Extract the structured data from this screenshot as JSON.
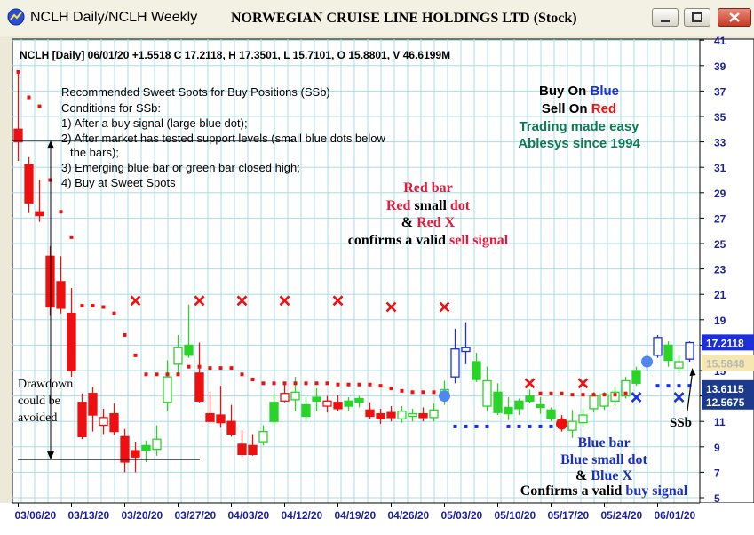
{
  "window": {
    "tab_label": "NCLH Daily/NCLH Weekly",
    "title": "NORWEGIAN CRUISE LINE HOLDINGS LTD (Stock)"
  },
  "info_line": "NCLH [Daily] 06/01/20 +1.5518 C 17.2118, H 17.3501, L 15.7101, O 15.8801, V 46.6199M",
  "notes": {
    "heading": "Recommended Sweet Spots for Buy Positions (SSb)",
    "lines": [
      "Conditions for SSb:",
      "1) After a buy signal (large blue dot);",
      "2) After market has tested support levels (small blue dots below",
      "the bars);",
      "3) Emerging blue bar or green bar closed high;",
      "4) Buy at Sweet Spots"
    ]
  },
  "brand": {
    "buy_prefix": "Buy On ",
    "buy_word": "Blue",
    "sell_prefix": "Sell On ",
    "sell_word": "Red",
    "line3": "Trading made easy",
    "line4": "Ablesys since 1994"
  },
  "sell_note": {
    "line1": "Red bar",
    "line2_a": "Red",
    "line2_b": " small ",
    "line2_c": "dot",
    "line3_a": "& ",
    "line3_b": "Red X",
    "line4_a": "confirms a valid ",
    "line4_b": "sell signal"
  },
  "buy_note": {
    "line1": "Blue bar",
    "line2": "Blue small dot",
    "line3_a": "& ",
    "line3_b": "Blue X",
    "line4_a": "Confirms a valid ",
    "line4_b": "buy signal"
  },
  "drawdown_text": [
    "Drawdown",
    "could be",
    "avoided"
  ],
  "ssb_label": "SSb",
  "price_tags": [
    {
      "value": "17.2118",
      "y": 17.2118,
      "bg": "#1d2fd8",
      "fg": "#ffffff"
    },
    {
      "value": "15.5848",
      "y": 15.5848,
      "bg": "#f4e7b0",
      "fg": "#b8b8b8"
    },
    {
      "value": "13.6115",
      "y": 13.6115,
      "bg": "#1b3a8c",
      "fg": "#ffffff"
    },
    {
      "value": "12.5675",
      "y": 12.5675,
      "bg": "#1b3a8c",
      "fg": "#ffffff"
    }
  ],
  "colors": {
    "chart_bg": "#ffffff",
    "grid": "#a8dde6",
    "red": "#ee1010",
    "green": "#28d428",
    "blue": "#1a2fe0",
    "brand_green": "#0c7a52",
    "label_blue": "#1a2fc0"
  },
  "chart_data": {
    "type": "candlestick",
    "ylim": [
      5,
      41
    ],
    "y_ticks": [
      5,
      7,
      9,
      11,
      13,
      15,
      17,
      19,
      21,
      23,
      25,
      27,
      29,
      31,
      33,
      35,
      37,
      39,
      41
    ],
    "x_tick_labels": [
      "03/06/20",
      "03/13/20",
      "03/20/20",
      "03/27/20",
      "04/03/20",
      "04/12/20",
      "04/19/20",
      "04/26/20",
      "05/03/20",
      "05/10/20",
      "05/17/20",
      "05/24/20",
      "06/01/20"
    ],
    "grid": true,
    "bars": [
      {
        "x": 0,
        "o": 34.0,
        "h": 38.5,
        "l": 31.5,
        "c": 33.0,
        "color": "red",
        "style": "filled"
      },
      {
        "x": 1,
        "o": 31.2,
        "h": 31.8,
        "l": 27.4,
        "c": 28.2,
        "color": "red",
        "style": "filled"
      },
      {
        "x": 2,
        "o": 27.5,
        "h": 30.0,
        "l": 26.7,
        "c": 27.2,
        "color": "red",
        "style": "filled"
      },
      {
        "x": 3,
        "o": 24.0,
        "h": 24.8,
        "l": 19.3,
        "c": 20.0,
        "color": "red",
        "style": "filled"
      },
      {
        "x": 4,
        "o": 22.0,
        "h": 24.0,
        "l": 19.5,
        "c": 19.9,
        "color": "red",
        "style": "filled"
      },
      {
        "x": 5,
        "o": 19.5,
        "h": 21.5,
        "l": 14.5,
        "c": 15.0,
        "color": "red",
        "style": "filled"
      },
      {
        "x": 6,
        "o": 12.5,
        "h": 13.2,
        "l": 9.6,
        "c": 9.8,
        "color": "red",
        "style": "filled"
      },
      {
        "x": 7,
        "o": 13.2,
        "h": 13.7,
        "l": 10.2,
        "c": 11.5,
        "color": "red",
        "style": "filled"
      },
      {
        "x": 8,
        "o": 10.7,
        "h": 12.0,
        "l": 10.0,
        "c": 11.3,
        "color": "red",
        "style": "hollow"
      },
      {
        "x": 9,
        "o": 11.6,
        "h": 12.4,
        "l": 9.9,
        "c": 10.2,
        "color": "red",
        "style": "filled"
      },
      {
        "x": 10,
        "o": 9.8,
        "h": 10.4,
        "l": 7.0,
        "c": 7.8,
        "color": "red",
        "style": "filled"
      },
      {
        "x": 11,
        "o": 8.7,
        "h": 9.4,
        "l": 7.0,
        "c": 8.2,
        "color": "red",
        "style": "filled"
      },
      {
        "x": 12,
        "o": 8.7,
        "h": 9.5,
        "l": 7.8,
        "c": 9.1,
        "color": "green",
        "style": "filled"
      },
      {
        "x": 13,
        "o": 8.8,
        "h": 10.7,
        "l": 8.3,
        "c": 9.6,
        "color": "green",
        "style": "hollow"
      },
      {
        "x": 14,
        "o": 12.5,
        "h": 15.8,
        "l": 11.8,
        "c": 14.5,
        "color": "green",
        "style": "hollow"
      },
      {
        "x": 15,
        "o": 15.5,
        "h": 17.8,
        "l": 14.7,
        "c": 16.8,
        "color": "green",
        "style": "hollow"
      },
      {
        "x": 16,
        "o": 17.0,
        "h": 20.2,
        "l": 16.0,
        "c": 16.2,
        "color": "green",
        "style": "filled"
      },
      {
        "x": 17,
        "o": 14.8,
        "h": 17.2,
        "l": 12.5,
        "c": 12.6,
        "color": "red",
        "style": "filled"
      },
      {
        "x": 18,
        "o": 11.6,
        "h": 13.3,
        "l": 10.9,
        "c": 11.0,
        "color": "red",
        "style": "filled"
      },
      {
        "x": 19,
        "o": 11.5,
        "h": 13.8,
        "l": 10.5,
        "c": 10.9,
        "color": "red",
        "style": "filled"
      },
      {
        "x": 20,
        "o": 11.0,
        "h": 12.3,
        "l": 9.8,
        "c": 10.0,
        "color": "red",
        "style": "filled"
      },
      {
        "x": 21,
        "o": 9.2,
        "h": 10.3,
        "l": 8.2,
        "c": 8.4,
        "color": "red",
        "style": "filled"
      },
      {
        "x": 22,
        "o": 9.1,
        "h": 10.0,
        "l": 8.3,
        "c": 8.4,
        "color": "red",
        "style": "filled"
      },
      {
        "x": 23,
        "o": 9.4,
        "h": 10.7,
        "l": 9.1,
        "c": 10.2,
        "color": "green",
        "style": "hollow"
      },
      {
        "x": 24,
        "o": 11.0,
        "h": 13.2,
        "l": 10.7,
        "c": 12.5,
        "color": "green",
        "style": "filled"
      },
      {
        "x": 25,
        "o": 13.2,
        "h": 14.0,
        "l": 12.5,
        "c": 12.6,
        "color": "red",
        "style": "hollow"
      },
      {
        "x": 26,
        "o": 12.7,
        "h": 14.5,
        "l": 11.8,
        "c": 13.3,
        "color": "green",
        "style": "hollow"
      },
      {
        "x": 27,
        "o": 11.4,
        "h": 12.9,
        "l": 11.0,
        "c": 12.3,
        "color": "green",
        "style": "filled"
      },
      {
        "x": 28,
        "o": 12.6,
        "h": 13.6,
        "l": 11.8,
        "c": 12.9,
        "color": "green",
        "style": "filled"
      },
      {
        "x": 29,
        "o": 12.6,
        "h": 13.0,
        "l": 11.7,
        "c": 12.2,
        "color": "red",
        "style": "hollow"
      },
      {
        "x": 30,
        "o": 12.5,
        "h": 13.1,
        "l": 11.8,
        "c": 12.0,
        "color": "red",
        "style": "filled"
      },
      {
        "x": 31,
        "o": 12.2,
        "h": 12.9,
        "l": 11.8,
        "c": 12.6,
        "color": "green",
        "style": "filled"
      },
      {
        "x": 32,
        "o": 12.8,
        "h": 13.0,
        "l": 12.1,
        "c": 12.5,
        "color": "green",
        "style": "filled"
      },
      {
        "x": 33,
        "o": 11.9,
        "h": 12.5,
        "l": 11.2,
        "c": 11.4,
        "color": "red",
        "style": "filled"
      },
      {
        "x": 34,
        "o": 11.6,
        "h": 12.0,
        "l": 10.8,
        "c": 11.2,
        "color": "red",
        "style": "filled"
      },
      {
        "x": 35,
        "o": 11.7,
        "h": 12.2,
        "l": 11.0,
        "c": 11.3,
        "color": "red",
        "style": "filled"
      },
      {
        "x": 36,
        "o": 11.2,
        "h": 12.2,
        "l": 10.9,
        "c": 11.8,
        "color": "green",
        "style": "hollow"
      },
      {
        "x": 37,
        "o": 11.4,
        "h": 12.0,
        "l": 11.0,
        "c": 11.6,
        "color": "green",
        "style": "hollow"
      },
      {
        "x": 38,
        "o": 11.3,
        "h": 12.1,
        "l": 11.0,
        "c": 11.6,
        "color": "red",
        "style": "filled"
      },
      {
        "x": 39,
        "o": 11.3,
        "h": 12.4,
        "l": 11.0,
        "c": 11.9,
        "color": "green",
        "style": "hollow"
      },
      {
        "x": 40,
        "o": 13.0,
        "h": 14.2,
        "l": 12.3,
        "c": 13.5,
        "color": "green",
        "style": "hollow"
      },
      {
        "x": 41,
        "o": 14.5,
        "h": 18.3,
        "l": 14.0,
        "c": 16.7,
        "color": "blue",
        "style": "hollow"
      },
      {
        "x": 42,
        "o": 16.5,
        "h": 18.8,
        "l": 15.5,
        "c": 16.8,
        "color": "blue",
        "style": "hollow"
      },
      {
        "x": 43,
        "o": 15.7,
        "h": 16.4,
        "l": 14.1,
        "c": 14.3,
        "color": "green",
        "style": "filled"
      },
      {
        "x": 44,
        "o": 14.2,
        "h": 15.3,
        "l": 11.8,
        "c": 12.2,
        "color": "green",
        "style": "hollow"
      },
      {
        "x": 45,
        "o": 13.3,
        "h": 14.0,
        "l": 11.5,
        "c": 11.7,
        "color": "green",
        "style": "filled"
      },
      {
        "x": 46,
        "o": 11.6,
        "h": 12.9,
        "l": 11.1,
        "c": 12.1,
        "color": "green",
        "style": "filled"
      },
      {
        "x": 47,
        "o": 12.0,
        "h": 12.8,
        "l": 11.5,
        "c": 12.6,
        "color": "green",
        "style": "filled"
      },
      {
        "x": 48,
        "o": 12.6,
        "h": 13.5,
        "l": 12.4,
        "c": 13.0,
        "color": "green",
        "style": "filled"
      },
      {
        "x": 49,
        "o": 12.3,
        "h": 12.9,
        "l": 11.6,
        "c": 12.1,
        "color": "green",
        "style": "filled"
      },
      {
        "x": 50,
        "o": 11.9,
        "h": 12.1,
        "l": 11.0,
        "c": 11.2,
        "color": "green",
        "style": "filled"
      },
      {
        "x": 51,
        "o": 11.1,
        "h": 11.5,
        "l": 10.2,
        "c": 10.6,
        "color": "red",
        "style": "filled"
      },
      {
        "x": 52,
        "o": 10.3,
        "h": 11.9,
        "l": 9.7,
        "c": 11.0,
        "color": "green",
        "style": "hollow"
      },
      {
        "x": 53,
        "o": 10.9,
        "h": 12.0,
        "l": 10.5,
        "c": 11.5,
        "color": "green",
        "style": "hollow"
      },
      {
        "x": 54,
        "o": 12.0,
        "h": 13.3,
        "l": 11.7,
        "c": 13.0,
        "color": "green",
        "style": "hollow"
      },
      {
        "x": 55,
        "o": 12.2,
        "h": 13.3,
        "l": 11.9,
        "c": 13.1,
        "color": "green",
        "style": "hollow"
      },
      {
        "x": 56,
        "o": 12.6,
        "h": 13.7,
        "l": 12.2,
        "c": 13.3,
        "color": "green",
        "style": "hollow"
      },
      {
        "x": 57,
        "o": 13.0,
        "h": 14.5,
        "l": 12.8,
        "c": 14.2,
        "color": "green",
        "style": "hollow"
      },
      {
        "x": 58,
        "o": 14.0,
        "h": 15.3,
        "l": 13.8,
        "c": 15.0,
        "color": "green",
        "style": "filled"
      },
      {
        "x": 59,
        "o": 15.7,
        "h": 16.3,
        "l": 15.0,
        "c": 15.8,
        "color": "blue",
        "style": "hollow"
      },
      {
        "x": 60,
        "o": 16.2,
        "h": 17.8,
        "l": 16.0,
        "c": 17.6,
        "color": "blue",
        "style": "hollow"
      },
      {
        "x": 61,
        "o": 15.8,
        "h": 17.3,
        "l": 15.3,
        "c": 17.0,
        "color": "green",
        "style": "filled"
      },
      {
        "x": 62,
        "o": 15.2,
        "h": 16.2,
        "l": 14.8,
        "c": 15.7,
        "color": "green",
        "style": "hollow"
      },
      {
        "x": 63,
        "o": 15.9,
        "h": 17.3,
        "l": 15.7,
        "c": 17.2,
        "color": "blue",
        "style": "hollow"
      }
    ],
    "sell_dots": [
      [
        0,
        38.5
      ],
      [
        1,
        36.5
      ],
      [
        2,
        35.8
      ],
      [
        3,
        30.0
      ],
      [
        4,
        27.5
      ],
      [
        5,
        25.5
      ],
      [
        6,
        20.1
      ],
      [
        7,
        20.1
      ],
      [
        8,
        20.0
      ],
      [
        9,
        19.5
      ],
      [
        10,
        17.8
      ],
      [
        11,
        16.2
      ],
      [
        12,
        14.7
      ],
      [
        13,
        14.7
      ],
      [
        14,
        14.7
      ],
      [
        15,
        14.7
      ],
      [
        16,
        15.3
      ],
      [
        17,
        15.3
      ],
      [
        18,
        15.2
      ],
      [
        19,
        15.2
      ],
      [
        20,
        15.2
      ],
      [
        21,
        14.7
      ],
      [
        22,
        14.3
      ],
      [
        23,
        14.0
      ],
      [
        24,
        14.0
      ],
      [
        25,
        14.0
      ],
      [
        26,
        14.0
      ],
      [
        27,
        14.0
      ],
      [
        28,
        14.0
      ],
      [
        29,
        14.0
      ],
      [
        30,
        13.9
      ],
      [
        31,
        13.9
      ],
      [
        32,
        13.9
      ],
      [
        33,
        13.9
      ],
      [
        34,
        13.8
      ],
      [
        35,
        13.6
      ],
      [
        36,
        13.4
      ],
      [
        37,
        13.3
      ],
      [
        38,
        13.3
      ],
      [
        39,
        13.3
      ],
      [
        49,
        13.2
      ],
      [
        50,
        13.2
      ],
      [
        51,
        13.2
      ],
      [
        52,
        13.1
      ],
      [
        53,
        13.1
      ],
      [
        54,
        13.1
      ],
      [
        55,
        13.1
      ],
      [
        56,
        13.1
      ],
      [
        57,
        13.2
      ]
    ],
    "buy_dots": [
      [
        41,
        10.6
      ],
      [
        42,
        10.6
      ],
      [
        43,
        10.6
      ],
      [
        44,
        10.6
      ],
      [
        46,
        10.6
      ],
      [
        47,
        10.6
      ],
      [
        48,
        10.6
      ],
      [
        49,
        10.6
      ],
      [
        50,
        10.6
      ],
      [
        60,
        13.8
      ],
      [
        61,
        13.8
      ],
      [
        62,
        13.8
      ],
      [
        63,
        13.8
      ]
    ],
    "large_buy_dots": [
      [
        40,
        13.0
      ],
      [
        59,
        15.7
      ]
    ],
    "large_sell_dots": [
      [
        51,
        10.8
      ]
    ],
    "sell_x": [
      [
        11,
        20.5
      ],
      [
        17,
        20.5
      ],
      [
        21,
        20.5
      ],
      [
        25,
        20.5
      ],
      [
        30,
        20.5
      ],
      [
        35,
        20.0
      ],
      [
        40,
        20.0
      ],
      [
        48,
        14.0
      ],
      [
        53,
        14.0
      ]
    ],
    "buy_x": [
      [
        58,
        12.9
      ],
      [
        62,
        12.9
      ]
    ]
  }
}
